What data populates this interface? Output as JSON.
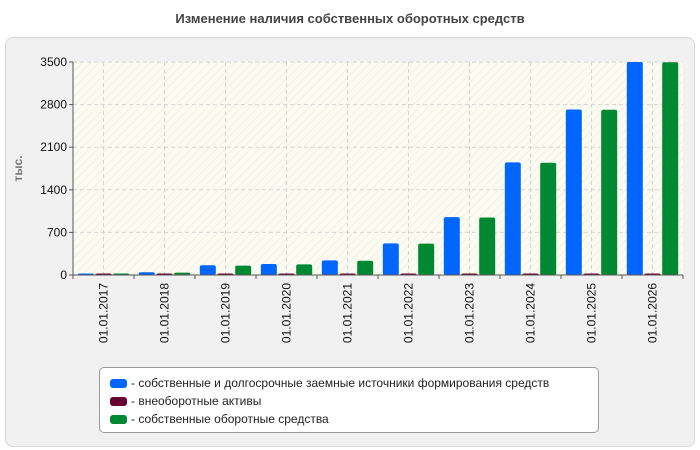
{
  "chart_data": {
    "type": "bar",
    "title": "Изменение наличия собственных оборотных средств",
    "ylabel": "тыс.",
    "xlabel": "",
    "ylim": [
      0,
      3500
    ],
    "yticks": [
      "0",
      "700",
      "1400",
      "2100",
      "2800",
      "3500"
    ],
    "categories": [
      "01.01.2017",
      "01.01.2018",
      "01.01.2019",
      "01.01.2020",
      "01.01.2021",
      "01.01.2022",
      "01.01.2023",
      "01.01.2024",
      "01.01.2025",
      "01.01.2026"
    ],
    "series": [
      {
        "name": "- собственные и долгосрочные заемные источники формирования средств",
        "color": "#0066ff",
        "values": [
          15,
          45,
          160,
          180,
          240,
          520,
          950,
          1850,
          2720,
          3500
        ]
      },
      {
        "name": "- внеоборотные активы",
        "color": "#660033",
        "values": [
          5,
          5,
          5,
          5,
          5,
          5,
          5,
          5,
          5,
          5
        ]
      },
      {
        "name": "- собственные оборотные средства",
        "color": "#008833",
        "values": [
          10,
          40,
          155,
          175,
          235,
          515,
          945,
          1845,
          2715,
          3495
        ]
      }
    ],
    "grid": true,
    "legend": "bottom"
  }
}
